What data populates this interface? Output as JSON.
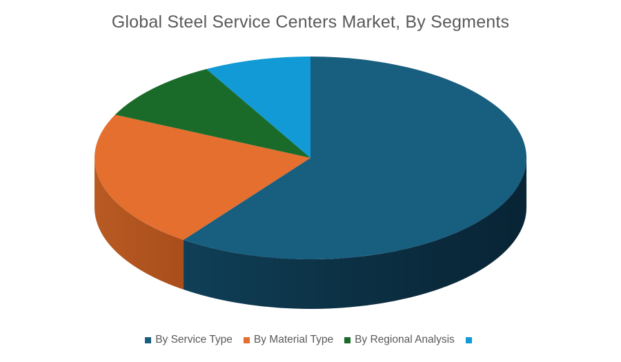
{
  "chart_data": {
    "type": "pie",
    "title": "Global Steel Service Centers Market, By Segments",
    "style": "3d",
    "slices": [
      {
        "label": "By Service Type",
        "value": 60,
        "color": "#175E7F"
      },
      {
        "label": "By Material Type",
        "value": 22,
        "color": "#E46F2F"
      },
      {
        "label": "By Regional Analysis",
        "value": 10,
        "color": "#1A6B2A"
      },
      {
        "label": "",
        "value": 8,
        "color": "#119AD5"
      }
    ],
    "legend_position": "bottom"
  }
}
